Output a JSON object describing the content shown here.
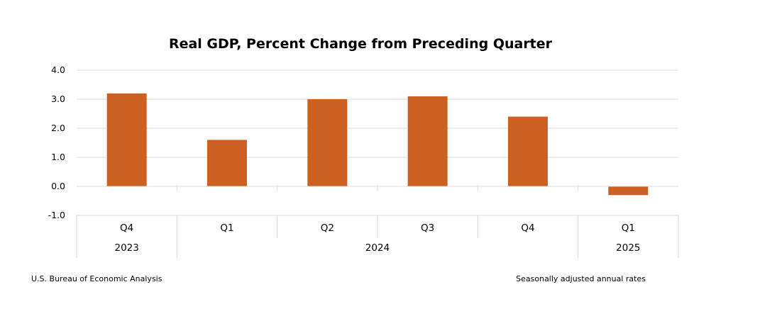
{
  "chart_data": {
    "type": "bar",
    "title": "Real GDP, Percent Change from Preceding Quarter",
    "categories": [
      "Q4",
      "Q1",
      "Q2",
      "Q3",
      "Q4",
      "Q1"
    ],
    "year_groups": [
      {
        "label": "2023",
        "span": 1
      },
      {
        "label": "2024",
        "span": 4
      },
      {
        "label": "2025",
        "span": 1
      }
    ],
    "values": [
      3.2,
      1.6,
      3.0,
      3.1,
      2.4,
      -0.3
    ],
    "ylim": [
      -1.0,
      4.0
    ],
    "yticks": [
      "4.0",
      "3.0",
      "2.0",
      "1.0",
      "0.0",
      "-1.0"
    ],
    "ytick_values": [
      4.0,
      3.0,
      2.0,
      1.0,
      0.0,
      -1.0
    ],
    "grid": true,
    "bar_color": "#CC6021",
    "grid_color": "#D9D9D9",
    "xlabel": "",
    "ylabel": ""
  },
  "footer": {
    "source": "U.S. Bureau of Economic Analysis",
    "note": "Seasonally adjusted annual rates"
  }
}
